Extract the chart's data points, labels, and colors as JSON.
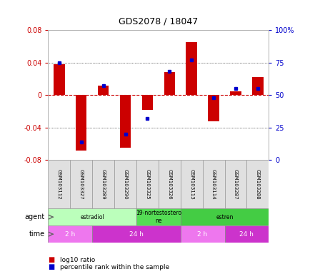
{
  "title": "GDS2078 / 18047",
  "samples": [
    "GSM103112",
    "GSM103327",
    "GSM103289",
    "GSM103290",
    "GSM103325",
    "GSM103326",
    "GSM103113",
    "GSM103114",
    "GSM103287",
    "GSM103288"
  ],
  "log10_ratio": [
    0.038,
    -0.068,
    0.012,
    -0.065,
    -0.018,
    0.028,
    0.065,
    -0.032,
    0.005,
    0.022
  ],
  "percentile_rank": [
    75,
    14,
    57,
    20,
    32,
    68,
    77,
    48,
    55,
    55
  ],
  "ylim": [
    -0.08,
    0.08
  ],
  "yticks_left": [
    -0.08,
    -0.04,
    0.0,
    0.04,
    0.08
  ],
  "yticks_right": [
    0,
    25,
    50,
    75,
    100
  ],
  "bar_color": "#cc0000",
  "dot_color": "#0000cc",
  "grid_color": "#000000",
  "zero_line_color": "#cc0000",
  "agent_groups": [
    {
      "label": "estradiol",
      "start": 0,
      "end": 4,
      "color": "#bbffbb"
    },
    {
      "label": "19-nortestostero\nne",
      "start": 4,
      "end": 6,
      "color": "#55dd55"
    },
    {
      "label": "estren",
      "start": 6,
      "end": 10,
      "color": "#44cc44"
    }
  ],
  "time_groups": [
    {
      "label": "2 h",
      "start": 0,
      "end": 2,
      "color": "#ee77ee"
    },
    {
      "label": "24 h",
      "start": 2,
      "end": 6,
      "color": "#cc33cc"
    },
    {
      "label": "2 h",
      "start": 6,
      "end": 8,
      "color": "#ee77ee"
    },
    {
      "label": "24 h",
      "start": 8,
      "end": 10,
      "color": "#cc33cc"
    }
  ],
  "legend_bar_color": "#cc0000",
  "legend_dot_color": "#0000cc",
  "legend_label1": "log10 ratio",
  "legend_label2": "percentile rank within the sample",
  "background_color": "#ffffff",
  "plot_bg_color": "#ffffff",
  "tick_label_color_left": "#cc0000",
  "tick_label_color_right": "#0000cc"
}
